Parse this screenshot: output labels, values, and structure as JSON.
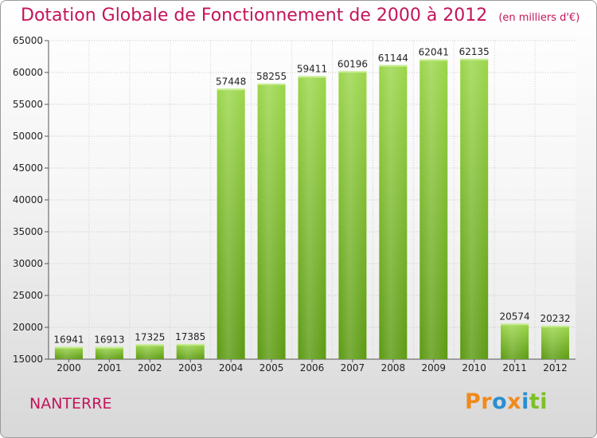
{
  "chart_data": {
    "type": "bar",
    "title": "Dotation Globale de Fonctionnement de 2000 à 2012",
    "unit": "(en milliers d'€)",
    "categories": [
      "2000",
      "2001",
      "2002",
      "2003",
      "2004",
      "2005",
      "2006",
      "2007",
      "2008",
      "2009",
      "2010",
      "2011",
      "2012"
    ],
    "values": [
      16941,
      16913,
      17325,
      17385,
      57448,
      58255,
      59411,
      60196,
      61144,
      62041,
      62135,
      20574,
      20232
    ],
    "ylim": [
      15000,
      65000
    ],
    "yticks": [
      15000,
      20000,
      25000,
      30000,
      35000,
      40000,
      45000,
      50000,
      55000,
      60000,
      65000
    ],
    "grid": true,
    "colors": {
      "bar_top": "#9bd64a",
      "bar_bottom": "#5c9a12",
      "title": "#c4145a"
    }
  },
  "location": "NANTERRE",
  "logo": {
    "parts": [
      "Pr",
      "o",
      "x",
      "i",
      "t",
      "i"
    ]
  }
}
